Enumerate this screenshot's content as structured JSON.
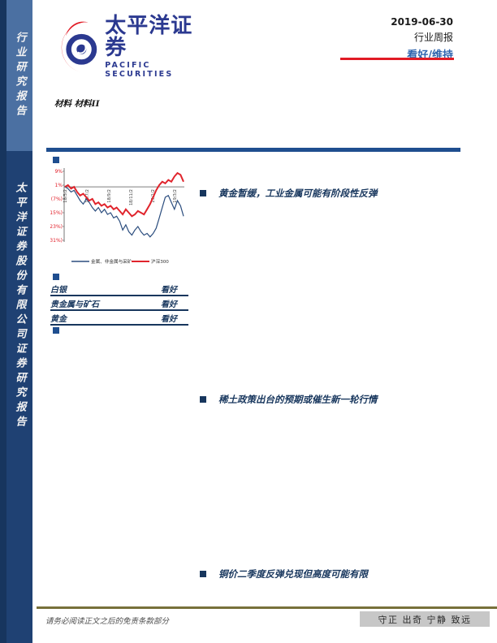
{
  "sidebar": {
    "top_label": "行业研究报告",
    "bottom_label": "太平洋证券股份有限公司证券研究报告"
  },
  "header": {
    "logo_cn": "太平洋证券",
    "logo_en": "PACIFIC SECURITIES",
    "date": "2019-06-30",
    "report_type": "行业周报",
    "rating": "看好/维持",
    "category": "材料 材料II"
  },
  "ratings_table": {
    "rows": [
      {
        "name": "白银",
        "rating": "看好"
      },
      {
        "name": "贵金属与矿石",
        "rating": "看好"
      },
      {
        "name": "黄金",
        "rating": "看好"
      }
    ]
  },
  "highlights": [
    {
      "text": "黄金暂缓，工业金属可能有阶段性反弹"
    },
    {
      "text": "稀土政策出台的预期或催生新一轮行情"
    },
    {
      "text": "铜价二季度反弹兑现但高度可能有限"
    }
  ],
  "footer": {
    "disclaimer": "请务必阅读正文之后的免责条款部分",
    "motto": "守正 出奇 宁静 致远"
  },
  "colors": {
    "sidebar_light": "#4b70a2",
    "sidebar_dark": "#1f4173",
    "accent_blue": "#1f4e8f",
    "navy_text": "#17365d",
    "rating_blue": "#2d64ae",
    "red": "#e11b25",
    "footer_gold": "#77713a"
  },
  "chart_data": {
    "type": "line",
    "title": "",
    "xlabel": "",
    "ylabel": "",
    "ylim": [
      -31,
      9
    ],
    "y_tick_values": [
      9,
      1,
      -7,
      -15,
      -23,
      -31
    ],
    "y_tick_labels": [
      "9%",
      "1%",
      "(7%)",
      "(15%)",
      "(23%)",
      "(31%)"
    ],
    "x_tick_labels": [
      "18/5/2",
      "18/7/2",
      "18/9/2",
      "18/11/2",
      "19/1/2",
      "19/3/2"
    ],
    "grid": false,
    "legend_position": "bottom",
    "series": [
      {
        "name": "金属、非金属与采矿",
        "color": "#2b4d7e",
        "values": [
          0,
          -1,
          -3,
          -2,
          -5,
          -8,
          -10,
          -7,
          -9,
          -12,
          -14,
          -12,
          -15,
          -13,
          -16,
          -15,
          -18,
          -17,
          -20,
          -25,
          -22,
          -26,
          -28,
          -25,
          -23,
          -26,
          -28,
          -27,
          -29,
          -27,
          -24,
          -18,
          -12,
          -6,
          -5,
          -9,
          -13,
          -8,
          -11,
          -17
        ]
      },
      {
        "name": "沪深300",
        "color": "#e0242c",
        "values": [
          0,
          1,
          -1,
          0,
          -3,
          -5,
          -4,
          -6,
          -8,
          -7,
          -10,
          -9,
          -11,
          -10,
          -12,
          -11,
          -13,
          -12,
          -14,
          -16,
          -13,
          -15,
          -17,
          -16,
          -14,
          -15,
          -16,
          -13,
          -10,
          -6,
          -2,
          1,
          3,
          2,
          4,
          3,
          6,
          8,
          7,
          3
        ]
      }
    ]
  }
}
